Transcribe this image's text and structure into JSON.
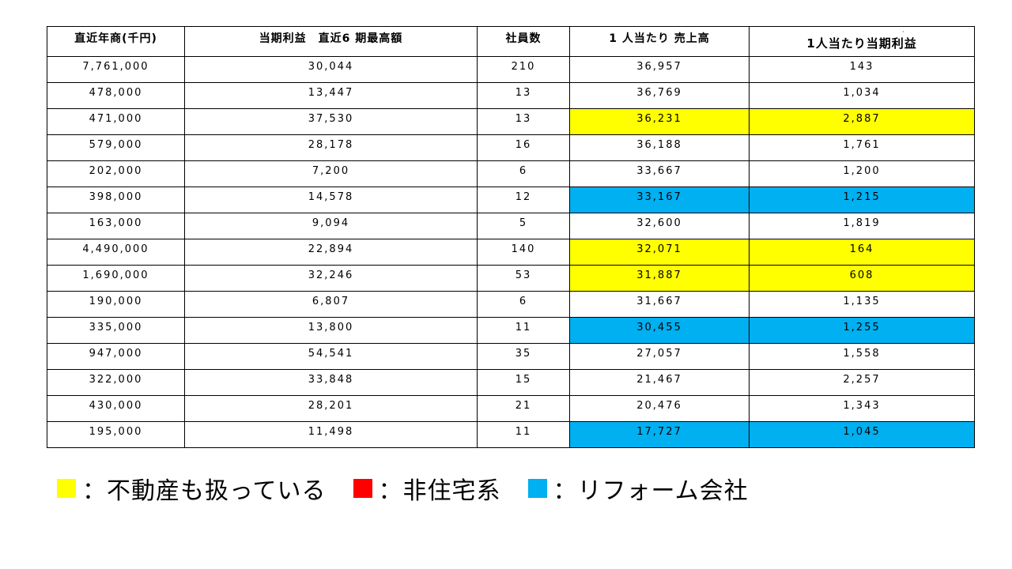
{
  "table": {
    "headers": [
      "直近年商(千円)",
      "当期利益　直近6 期最高額",
      "社員数",
      "1 人当たり 売上高",
      "1人当たり当期利益"
    ],
    "rows": [
      {
        "cells": [
          "7,761,000",
          "30,044",
          "210",
          "36,957",
          "143"
        ],
        "highlight": ""
      },
      {
        "cells": [
          "478,000",
          "13,447",
          "13",
          "36,769",
          "1,034"
        ],
        "highlight": ""
      },
      {
        "cells": [
          "471,000",
          "37,530",
          "13",
          "36,231",
          "2,887"
        ],
        "highlight": "yellow"
      },
      {
        "cells": [
          "579,000",
          "28,178",
          "16",
          "36,188",
          "1,761"
        ],
        "highlight": ""
      },
      {
        "cells": [
          "202,000",
          "7,200",
          "6",
          "33,667",
          "1,200"
        ],
        "highlight": ""
      },
      {
        "cells": [
          "398,000",
          "14,578",
          "12",
          "33,167",
          "1,215"
        ],
        "highlight": "blue"
      },
      {
        "cells": [
          "163,000",
          "9,094",
          "5",
          "32,600",
          "1,819"
        ],
        "highlight": ""
      },
      {
        "cells": [
          "4,490,000",
          "22,894",
          "140",
          "32,071",
          "164"
        ],
        "highlight": "yellow"
      },
      {
        "cells": [
          "1,690,000",
          "32,246",
          "53",
          "31,887",
          "608"
        ],
        "highlight": "yellow"
      },
      {
        "cells": [
          "190,000",
          "6,807",
          "6",
          "31,667",
          "1,135"
        ],
        "highlight": ""
      },
      {
        "cells": [
          "335,000",
          "13,800",
          "11",
          "30,455",
          "1,255"
        ],
        "highlight": "blue"
      },
      {
        "cells": [
          "947,000",
          "54,541",
          "35",
          "27,057",
          "1,558"
        ],
        "highlight": ""
      },
      {
        "cells": [
          "322,000",
          "33,848",
          "15",
          "21,467",
          "2,257"
        ],
        "highlight": ""
      },
      {
        "cells": [
          "430,000",
          "28,201",
          "21",
          "20,476",
          "1,343"
        ],
        "highlight": ""
      },
      {
        "cells": [
          "195,000",
          "11,498",
          "11",
          "17,727",
          "1,045"
        ],
        "highlight": "blue"
      }
    ]
  },
  "legend": [
    {
      "color": "#ffff00",
      "label": "：不動産も扱っている"
    },
    {
      "color": "#ff0000",
      "label": "：非住宅系"
    },
    {
      "color": "#00b0f0",
      "label": "：リフォーム会社"
    }
  ],
  "colors": {
    "yellow": "#ffff00",
    "red": "#ff0000",
    "blue": "#00b0f0"
  },
  "mark": "·"
}
